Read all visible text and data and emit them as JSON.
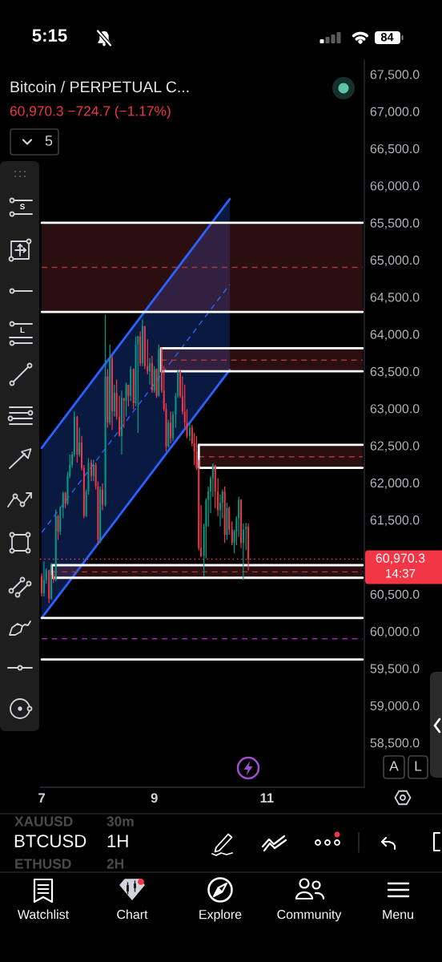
{
  "chart_data": {
    "type": "candlestick",
    "title": "Bitcoin / PERPETUAL C...",
    "subtitle": "60,970.3 −724.7 (−1.17%)",
    "x": [
      7.0,
      7.04,
      7.08,
      7.13,
      7.17,
      7.21,
      7.25,
      7.29,
      7.33,
      7.38,
      7.42,
      7.46,
      7.5,
      7.54,
      7.58,
      7.63,
      7.67,
      7.71,
      7.75,
      7.79,
      7.83,
      7.88,
      7.92,
      7.96,
      8.0,
      8.04,
      8.08,
      8.13,
      8.17,
      8.21,
      8.25,
      8.29,
      8.33,
      8.38,
      8.42,
      8.46,
      8.5,
      8.54,
      8.58,
      8.63,
      8.67,
      8.71,
      8.75,
      8.79,
      8.83,
      8.88,
      8.92,
      8.96,
      9.0,
      9.04,
      9.08,
      9.13,
      9.17,
      9.21,
      9.25,
      9.29,
      9.33,
      9.38,
      9.42,
      9.46,
      9.5,
      9.54,
      9.58,
      9.63,
      9.67,
      9.71,
      9.75,
      9.79,
      9.83,
      9.88,
      9.92,
      9.96,
      10.0,
      10.04,
      10.08,
      10.13,
      10.17,
      10.21,
      10.25,
      10.29,
      10.33,
      10.38,
      10.42,
      10.46,
      10.5,
      10.54,
      10.58,
      10.63,
      10.67
    ],
    "ohlc": [
      [
        60740,
        60780,
        60470,
        60510
      ],
      [
        60510,
        60940,
        60470,
        60690
      ],
      [
        60690,
        60850,
        60640,
        60820
      ],
      [
        60820,
        60830,
        60380,
        60440
      ],
      [
        60440,
        60920,
        60420,
        60760
      ],
      [
        60760,
        60820,
        60650,
        60690
      ],
      [
        60690,
        61640,
        60670,
        61550
      ],
      [
        61550,
        61570,
        61230,
        61340
      ],
      [
        61340,
        61680,
        61300,
        61660
      ],
      [
        61660,
        61880,
        61520,
        61860
      ],
      [
        61860,
        61880,
        61660,
        61720
      ],
      [
        61720,
        62150,
        61700,
        62090
      ],
      [
        62090,
        62380,
        62060,
        62240
      ],
      [
        62240,
        62420,
        62200,
        62380
      ],
      [
        62380,
        62960,
        62350,
        62890
      ],
      [
        62890,
        62900,
        62270,
        62380
      ],
      [
        62380,
        62740,
        62350,
        62540
      ],
      [
        62540,
        62630,
        62170,
        62200
      ],
      [
        62200,
        62240,
        61520,
        61550
      ],
      [
        61550,
        61910,
        61540,
        61880
      ],
      [
        61880,
        62330,
        61840,
        62270
      ],
      [
        62270,
        62310,
        62020,
        62090
      ],
      [
        62090,
        62310,
        62020,
        62240
      ],
      [
        62240,
        62270,
        61910,
        61950
      ],
      [
        61950,
        62020,
        61160,
        61230
      ],
      [
        61230,
        61950,
        61190,
        61910
      ],
      [
        61910,
        61990,
        61630,
        61700
      ],
      [
        61700,
        64260,
        61680,
        63430
      ],
      [
        63430,
        63530,
        62740,
        62810
      ],
      [
        62810,
        63860,
        62780,
        63680
      ],
      [
        63680,
        63710,
        62710,
        62960
      ],
      [
        62960,
        63320,
        62890,
        63210
      ],
      [
        63210,
        63390,
        62850,
        62890
      ],
      [
        62890,
        63170,
        62620,
        62630
      ],
      [
        62630,
        63240,
        62380,
        63140
      ],
      [
        63140,
        63140,
        62740,
        63100
      ],
      [
        63100,
        63350,
        62890,
        63320
      ],
      [
        63320,
        63320,
        63030,
        63170
      ],
      [
        63170,
        63570,
        63100,
        63530
      ],
      [
        63530,
        63540,
        62990,
        63070
      ],
      [
        63070,
        63970,
        63030,
        63860
      ],
      [
        63860,
        63980,
        62670,
        63970
      ],
      [
        63970,
        64040,
        63570,
        63610
      ],
      [
        63610,
        64200,
        63570,
        64110
      ],
      [
        64110,
        64110,
        63530,
        63570
      ],
      [
        63570,
        63930,
        63460,
        63500
      ],
      [
        63500,
        63680,
        63320,
        63610
      ],
      [
        63610,
        63710,
        63210,
        63240
      ],
      [
        63240,
        63570,
        63210,
        63530
      ],
      [
        63530,
        63540,
        63140,
        63170
      ],
      [
        63170,
        63860,
        63160,
        63790
      ],
      [
        63790,
        63820,
        63210,
        63240
      ],
      [
        63240,
        63570,
        62960,
        62990
      ],
      [
        62990,
        63070,
        62420,
        62490
      ],
      [
        62490,
        62850,
        62470,
        62810
      ],
      [
        62810,
        62960,
        62530,
        62600
      ],
      [
        62600,
        62960,
        62560,
        62920
      ],
      [
        62920,
        63210,
        62740,
        63170
      ],
      [
        63170,
        63520,
        63140,
        63500
      ],
      [
        63500,
        63520,
        63140,
        63170
      ],
      [
        63170,
        63430,
        62920,
        62960
      ],
      [
        62960,
        63320,
        62740,
        62810
      ],
      [
        62810,
        62990,
        62600,
        62630
      ],
      [
        62630,
        62810,
        62560,
        62740
      ],
      [
        62740,
        62780,
        62490,
        62530
      ],
      [
        62530,
        62670,
        62240,
        62420
      ],
      [
        62420,
        62630,
        62170,
        62200
      ],
      [
        62200,
        62310,
        61090,
        61120
      ],
      [
        61120,
        61700,
        61000,
        61010
      ],
      [
        61010,
        61450,
        60740,
        61410
      ],
      [
        61410,
        61790,
        60980,
        61770
      ],
      [
        61770,
        61950,
        61410,
        61880
      ],
      [
        61880,
        62090,
        61590,
        62060
      ],
      [
        62060,
        62260,
        61810,
        62240
      ],
      [
        62240,
        62240,
        61660,
        61880
      ],
      [
        61880,
        62060,
        61550,
        61630
      ],
      [
        61630,
        61840,
        61410,
        61730
      ],
      [
        61730,
        61910,
        61520,
        61880
      ],
      [
        61880,
        61950,
        61190,
        61300
      ],
      [
        61300,
        61730,
        61230,
        61660
      ],
      [
        61660,
        61680,
        61300,
        61370
      ],
      [
        61370,
        61480,
        61160,
        61190
      ],
      [
        61190,
        61370,
        61050,
        61340
      ],
      [
        61340,
        61550,
        61160,
        61520
      ],
      [
        61520,
        61810,
        61270,
        61770
      ],
      [
        61770,
        61780,
        61120,
        61190
      ],
      [
        61190,
        61450,
        60690,
        61370
      ],
      [
        61370,
        61460,
        61090,
        61410
      ],
      [
        61410,
        61450,
        60820,
        60970.3
      ]
    ],
    "series": [
      {
        "type": "line",
        "x": [
          7.0,
          10.34
        ],
        "values": [
          61330,
          64670
        ],
        "lower": [
          60180,
          63520
        ],
        "upper": [
          62470,
          65820
        ],
        "color": "#2962ff",
        "line_style": "dashed"
      },
      {
        "type": "line",
        "x": [
          7.0,
          10.34
        ],
        "values": [
          62470,
          65820
        ],
        "color": "#2962ff"
      },
      {
        "type": "line",
        "x": [
          7.0,
          10.34
        ],
        "values": [
          60180,
          63520
        ],
        "color": "#2962ff"
      },
      {
        "type": "line",
        "x": [
          7.0,
          12.7
        ],
        "values": [
          64900,
          64900
        ],
        "lower": [
          64300,
          64300
        ],
        "upper": [
          65500,
          65500
        ],
        "color": "#a8383f",
        "line_style": "dashed"
      },
      {
        "type": "line",
        "x": [
          7.0,
          12.7
        ],
        "values": [
          65500,
          65500
        ],
        "color": "#ffffff"
      },
      {
        "type": "line",
        "x": [
          7.0,
          12.7
        ],
        "values": [
          64300,
          64300
        ],
        "color": "#ffffff"
      },
      {
        "type": "line",
        "x": [
          9.12,
          12.7
        ],
        "values": [
          63650,
          63650
        ],
        "lower": [
          63500,
          63500
        ],
        "upper": [
          63810,
          63810
        ],
        "color": "#a8383f",
        "line_style": "dashed"
      },
      {
        "type": "line",
        "x": [
          12.7,
          9.12,
          9.12,
          12.7
        ],
        "values": [
          63810,
          63810,
          63500,
          63500
        ],
        "color": "#ffffff"
      },
      {
        "type": "line",
        "x": [
          9.79,
          12.7
        ],
        "values": [
          62350,
          62350
        ],
        "lower": [
          62200,
          62200
        ],
        "upper": [
          62510,
          62510
        ],
        "color": "#a8383f",
        "line_style": "dashed"
      },
      {
        "type": "line",
        "x": [
          12.7,
          9.79,
          9.79,
          12.7
        ],
        "values": [
          62510,
          62510,
          62200,
          62200
        ],
        "color": "#ffffff"
      },
      {
        "type": "line",
        "x": [
          7.18,
          12.7
        ],
        "values": [
          60800,
          60800
        ],
        "lower": [
          60720,
          60720
        ],
        "upper": [
          60890,
          60890
        ],
        "color": "#a8383f",
        "line_style": "dashed"
      },
      {
        "type": "line",
        "x": [
          12.7,
          7.18,
          7.18,
          12.7
        ],
        "values": [
          60890,
          60890,
          60720,
          60720
        ],
        "color": "#ffffff"
      },
      {
        "type": "line",
        "x": [
          7.0,
          12.7
        ],
        "values": [
          59900,
          59900
        ],
        "color": "#9c27b0",
        "line_style": "dashed"
      },
      {
        "type": "line",
        "x": [
          7.0,
          12.7
        ],
        "values": [
          60180,
          60180
        ],
        "color": "#ffffff"
      },
      {
        "type": "line",
        "x": [
          7.0,
          12.7
        ],
        "values": [
          59620,
          59620
        ],
        "color": "#ffffff"
      }
    ],
    "ref_lines": [
      {
        "axis": "y",
        "value": 60970.3,
        "label": "60,970.3",
        "color": "#f23645",
        "line_style": "dotted"
      }
    ],
    "xlim": [
      6.97,
      12.73
    ],
    "xticks": [
      7,
      9,
      11
    ],
    "ylim": [
      57900,
      67690
    ],
    "yticks": [
      {
        "value": 58500,
        "label": "58,500.0"
      },
      {
        "value": 59000,
        "label": "59,000.0"
      },
      {
        "value": 59500,
        "label": "59,500.0"
      },
      {
        "value": 60000,
        "label": "60,000.0"
      },
      {
        "value": 60500,
        "label": "60,500.0"
      },
      {
        "value": 61500,
        "label": "61,500.0"
      },
      {
        "value": 62000,
        "label": "62,000.0"
      },
      {
        "value": 62500,
        "label": "62,500.0"
      },
      {
        "value": 63000,
        "label": "63,000.0"
      },
      {
        "value": 63500,
        "label": "63,500.0"
      },
      {
        "value": 64000,
        "label": "64,000.0"
      },
      {
        "value": 64500,
        "label": "64,500.0"
      },
      {
        "value": 65000,
        "label": "65,000.0"
      },
      {
        "value": 65500,
        "label": "65,500.0"
      },
      {
        "value": 66000,
        "label": "66,000.0"
      },
      {
        "value": 66500,
        "label": "66,500.0"
      },
      {
        "value": 67000,
        "label": "67,000.0"
      },
      {
        "value": 67500,
        "label": "67,500.0"
      }
    ],
    "annotations": [
      "5:15",
      "84",
      "5",
      "S",
      "L",
      "14:37",
      "A",
      "L",
      "XAUUSD",
      "30m",
      "BTCUSD",
      "1H",
      "ETHUSD",
      "2H",
      "Watchlist",
      "Chart",
      "Explore",
      "Community",
      "Menu"
    ]
  }
}
